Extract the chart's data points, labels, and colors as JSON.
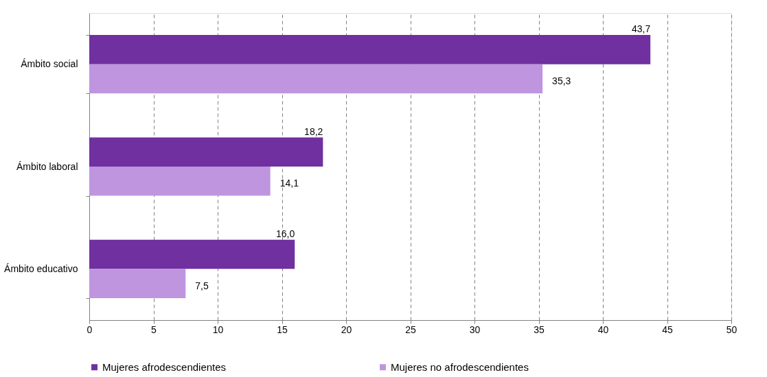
{
  "chart_data": {
    "type": "bar",
    "orientation": "horizontal",
    "categories": [
      "Ámbito social",
      "Ámbito laboral",
      "Ámbito educativo"
    ],
    "series": [
      {
        "name": "Mujeres afrodescendientes",
        "color": "#7030a0",
        "values": [
          43.7,
          18.2,
          16.0
        ],
        "value_labels": [
          "43,7",
          "18,2",
          "16,0"
        ]
      },
      {
        "name": "Mujeres no afrodescendientes",
        "color": "#bf95df",
        "values": [
          35.3,
          14.1,
          7.5
        ],
        "value_labels": [
          "35,3",
          "14,1",
          "7,5"
        ]
      }
    ],
    "xlim": [
      0,
      50
    ],
    "xticks": [
      0,
      5,
      10,
      15,
      20,
      25,
      30,
      35,
      40,
      45,
      50
    ],
    "grid": "x",
    "legend": "bottom"
  }
}
